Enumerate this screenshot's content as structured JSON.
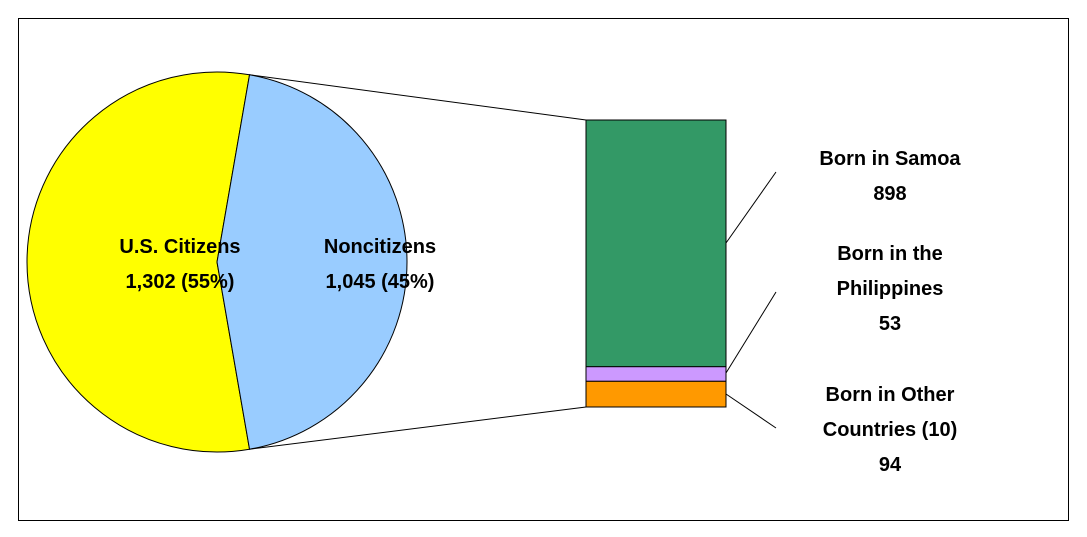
{
  "chart_data": {
    "type": "bar-of-pie",
    "pie": {
      "categories": [
        "U.S. Citizens",
        "Noncitizens"
      ],
      "values": [
        1302,
        1045
      ],
      "value_labels": [
        "1,302 (55%)",
        "1,045 (45%)"
      ],
      "colors": [
        "#ffff00",
        "#99ccff"
      ]
    },
    "bar": {
      "categories": [
        "Born in Samoa",
        "Born in the Philippines",
        "Born in Other Countries (10)"
      ],
      "values": [
        898,
        53,
        94
      ],
      "colors": [
        "#339966",
        "#cc99ff",
        "#ff9900"
      ]
    }
  }
}
